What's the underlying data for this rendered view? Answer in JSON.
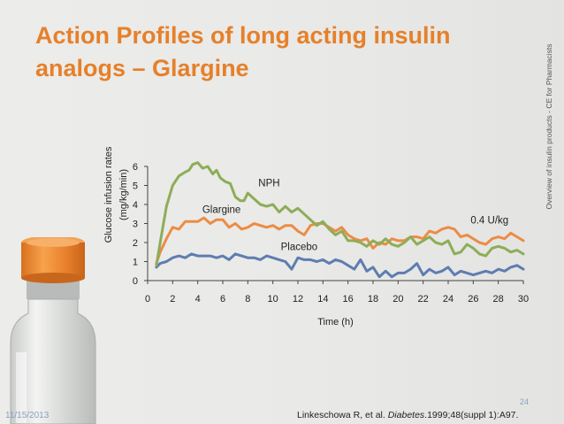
{
  "slide": {
    "title": "Action Profiles of long acting insulin analogs – Glargine",
    "side_caption": "Overview of insulin products - CE for Pharmacists",
    "ylabel_line1": "Glucose infusion rates",
    "ylabel_line2": "(mg/kg/min)",
    "date": "11/15/2013",
    "slide_number": "24",
    "reference_prefix": "Linkeschowa R, et al. ",
    "reference_journal": "Diabetes",
    "reference_suffix": ".1999;48(suppl 1):A97.",
    "accent_color": "#e6802a"
  },
  "chart_data": {
    "type": "line",
    "title": "",
    "xlabel": "Time (h)",
    "ylabel": "Glucose infusion rates (mg/kg/min)",
    "xlim": [
      0,
      30
    ],
    "ylim": [
      0,
      6
    ],
    "xticks": [
      0,
      2,
      4,
      6,
      8,
      10,
      12,
      14,
      16,
      18,
      20,
      22,
      24,
      26,
      28,
      30
    ],
    "yticks": [
      0,
      1,
      2,
      3,
      4,
      5,
      6
    ],
    "grid": false,
    "legend": "none",
    "annotations": [
      {
        "text": "NPH",
        "x": 9.7,
        "y": 4.95
      },
      {
        "text": "Glargine",
        "x": 5.9,
        "y": 3.55
      },
      {
        "text": "0.4 U/kg",
        "x": 27.3,
        "y": 3.0
      },
      {
        "text": "Placebo",
        "x": 12.1,
        "y": 1.6
      }
    ],
    "series": [
      {
        "name": "NPH",
        "color": "#8dad58",
        "x": [
          0.7,
          1.0,
          1.5,
          2.0,
          2.5,
          3.0,
          3.3,
          3.6,
          4.0,
          4.4,
          4.8,
          5.2,
          5.5,
          5.8,
          6.2,
          6.6,
          7.0,
          7.4,
          7.7,
          8.0,
          8.5,
          9.0,
          9.5,
          10.0,
          10.5,
          11.0,
          11.5,
          12.0,
          12.5,
          13.0,
          13.5,
          14.0,
          14.5,
          15.0,
          15.5,
          16.0,
          16.5,
          17.0,
          17.5,
          18.0,
          18.5,
          19.0,
          19.5,
          20.0,
          20.5,
          21.0,
          21.5,
          22.0,
          22.5,
          23.0,
          23.5,
          24.0,
          24.5,
          25.0,
          25.5,
          26.0,
          26.5,
          27.0,
          27.5,
          28.0,
          28.5,
          29.0,
          29.5,
          30.0
        ],
        "y": [
          0.8,
          2.0,
          3.9,
          5.0,
          5.5,
          5.7,
          5.8,
          6.1,
          6.2,
          5.9,
          6.0,
          5.6,
          5.8,
          5.4,
          5.2,
          5.1,
          4.4,
          4.2,
          4.2,
          4.6,
          4.3,
          4.0,
          3.9,
          4.0,
          3.6,
          3.9,
          3.6,
          3.8,
          3.5,
          3.2,
          2.9,
          3.1,
          2.7,
          2.4,
          2.6,
          2.1,
          2.1,
          2.0,
          1.8,
          2.1,
          1.9,
          2.2,
          1.9,
          1.8,
          2.0,
          2.3,
          1.9,
          2.1,
          2.3,
          2.0,
          1.9,
          2.1,
          1.4,
          1.5,
          1.9,
          1.7,
          1.4,
          1.3,
          1.7,
          1.8,
          1.7,
          1.5,
          1.6,
          1.4
        ]
      },
      {
        "name": "Glargine",
        "color": "#ec8c45",
        "x": [
          0.7,
          1.0,
          1.5,
          2.0,
          2.5,
          3.0,
          3.5,
          4.0,
          4.5,
          5.0,
          5.5,
          6.0,
          6.5,
          7.0,
          7.5,
          8.0,
          8.5,
          9.0,
          9.5,
          10.0,
          10.5,
          11.0,
          11.5,
          12.0,
          12.5,
          13.0,
          13.5,
          14.0,
          14.5,
          15.0,
          15.5,
          16.0,
          16.5,
          17.0,
          17.5,
          18.0,
          18.5,
          19.0,
          19.5,
          20.0,
          20.5,
          21.0,
          21.5,
          22.0,
          22.5,
          23.0,
          23.5,
          24.0,
          24.5,
          25.0,
          25.5,
          26.0,
          26.5,
          27.0,
          27.5,
          28.0,
          28.5,
          29.0,
          29.5,
          30.0
        ],
        "y": [
          0.9,
          1.5,
          2.2,
          2.8,
          2.7,
          3.1,
          3.1,
          3.1,
          3.3,
          3.0,
          3.2,
          3.2,
          2.8,
          3.0,
          2.7,
          2.8,
          3.0,
          2.9,
          2.8,
          2.9,
          2.7,
          2.9,
          2.9,
          2.6,
          2.4,
          2.9,
          3.0,
          3.0,
          2.8,
          2.6,
          2.8,
          2.4,
          2.2,
          2.1,
          2.2,
          1.7,
          2.0,
          1.9,
          2.2,
          2.1,
          2.1,
          2.3,
          2.3,
          2.2,
          2.6,
          2.5,
          2.7,
          2.8,
          2.7,
          2.3,
          2.4,
          2.2,
          2.0,
          1.9,
          2.2,
          2.3,
          2.2,
          2.5,
          2.3,
          2.1
        ]
      },
      {
        "name": "Placebo",
        "color": "#5e7db0",
        "x": [
          0.7,
          1.0,
          1.5,
          2.0,
          2.5,
          3.0,
          3.5,
          4.0,
          4.5,
          5.0,
          5.5,
          6.0,
          6.5,
          7.0,
          7.5,
          8.0,
          8.5,
          9.0,
          9.5,
          10.0,
          10.5,
          11.0,
          11.5,
          12.0,
          12.5,
          13.0,
          13.5,
          14.0,
          14.5,
          15.0,
          15.5,
          16.0,
          16.5,
          17.0,
          17.5,
          18.0,
          18.5,
          19.0,
          19.5,
          20.0,
          20.5,
          21.0,
          21.5,
          22.0,
          22.5,
          23.0,
          23.5,
          24.0,
          24.5,
          25.0,
          25.5,
          26.0,
          26.5,
          27.0,
          27.5,
          28.0,
          28.5,
          29.0,
          29.5,
          30.0
        ],
        "y": [
          0.7,
          0.9,
          1.0,
          1.2,
          1.3,
          1.2,
          1.4,
          1.3,
          1.3,
          1.3,
          1.2,
          1.3,
          1.1,
          1.4,
          1.3,
          1.2,
          1.2,
          1.1,
          1.3,
          1.2,
          1.1,
          1.0,
          0.6,
          1.2,
          1.1,
          1.1,
          1.0,
          1.1,
          0.9,
          1.1,
          1.0,
          0.8,
          0.6,
          1.1,
          0.5,
          0.7,
          0.2,
          0.5,
          0.2,
          0.4,
          0.4,
          0.6,
          0.9,
          0.3,
          0.6,
          0.4,
          0.5,
          0.7,
          0.3,
          0.5,
          0.4,
          0.3,
          0.4,
          0.5,
          0.4,
          0.6,
          0.5,
          0.7,
          0.8,
          0.6
        ]
      }
    ]
  }
}
